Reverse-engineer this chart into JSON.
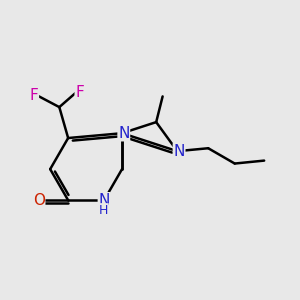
{
  "bg_color": "#e8e8e8",
  "bond_color": "#000000",
  "bond_width": 1.8,
  "atom_colors": {
    "N": "#2222cc",
    "O": "#cc2200",
    "F": "#cc00aa",
    "C": "#000000",
    "H": "#2222cc"
  },
  "font_size_atom": 11,
  "font_size_small": 9
}
